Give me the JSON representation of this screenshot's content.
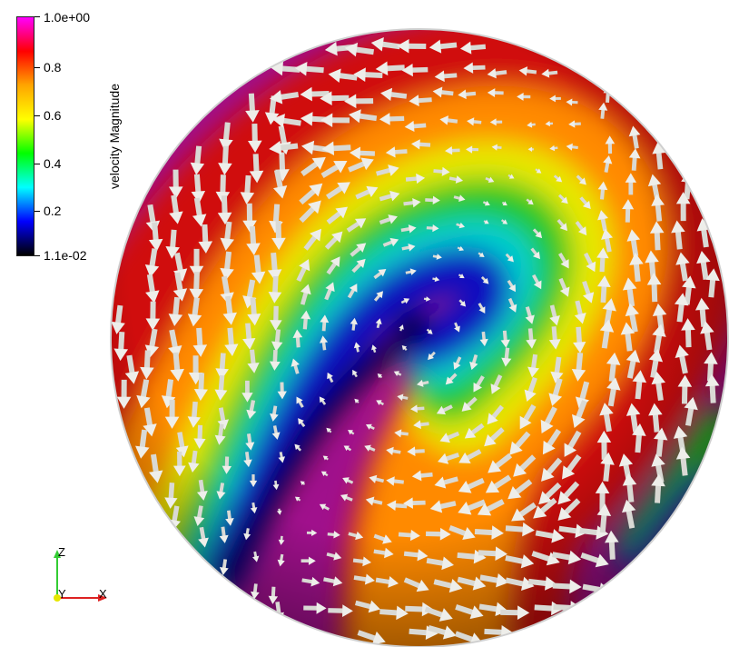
{
  "colorbar": {
    "title": "velocity Magnitude",
    "max_label": "1.0e+00",
    "min_label": "1.1e-02",
    "ticks": [
      "0.8",
      "0.6",
      "0.4",
      "0.2"
    ],
    "colors": [
      "#ff00ff",
      "#ff0000",
      "#ffa500",
      "#ffff00",
      "#00ff00",
      "#00ffff",
      "#0000ff",
      "#000000"
    ]
  },
  "axes": {
    "z": "Z",
    "y": "Y",
    "x": "X",
    "colors": {
      "z": "#33cc33",
      "y": "#e6e600",
      "x": "#dd2222"
    }
  },
  "scene": {
    "surface_colors": {
      "magenta": "#b0108f",
      "red": "#d81010",
      "orange": "#ff8c00",
      "yellow": "#eeee00",
      "green": "#22cc22",
      "cyan": "#00d8d8",
      "blue": "#0a10c0",
      "dark": "#000010"
    },
    "arrow_color": "#d9d9d4"
  }
}
